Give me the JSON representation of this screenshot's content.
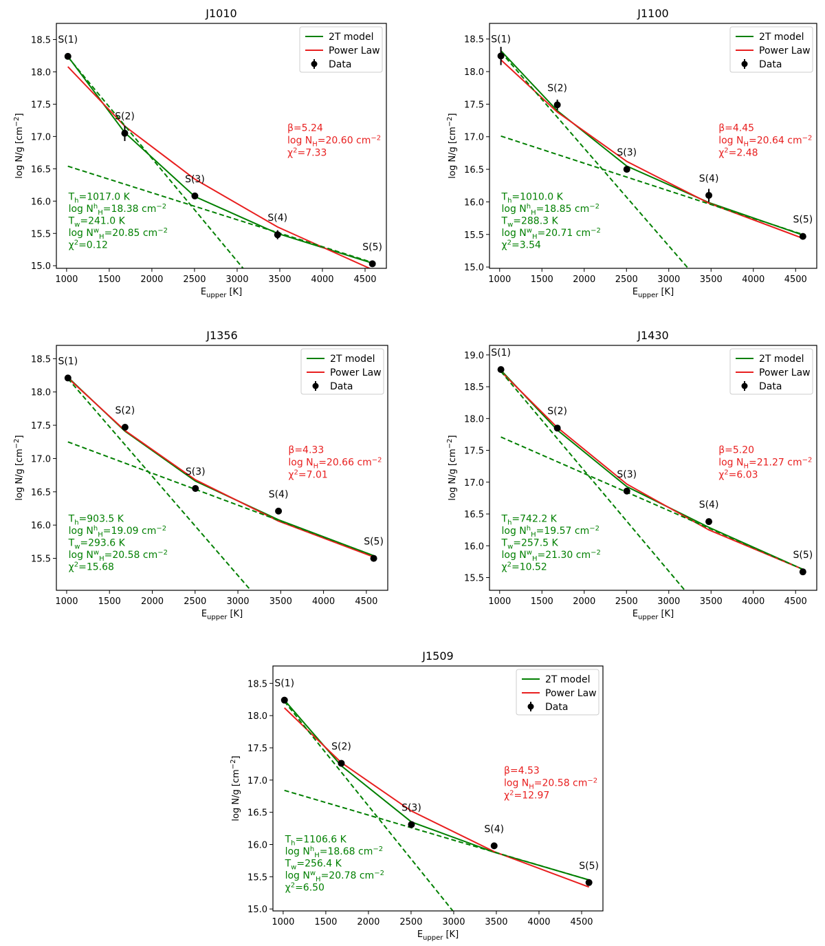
{
  "chart_data": [
    {
      "type": "line",
      "title": "J1010",
      "xlabel": "E_upper [K]",
      "ylabel": "log N/g [cm^-2]",
      "xlim": [
        880,
        4750
      ],
      "ylim": [
        14.96,
        18.75
      ],
      "xticks": [
        1000,
        1500,
        2000,
        2500,
        3000,
        3500,
        4000,
        4500
      ],
      "yticks": [
        15.0,
        15.5,
        16.0,
        16.5,
        17.0,
        17.5,
        18.0,
        18.5
      ],
      "legend": {
        "position": "top-right",
        "entries": [
          "2T model",
          "Power Law",
          "Data"
        ]
      },
      "data": {
        "x": [
          1015,
          1682,
          2504,
          3474,
          4586
        ],
        "y": [
          18.24,
          17.05,
          16.08,
          15.48,
          15.03
        ],
        "yerr": [
          0.04,
          0.12,
          0.04,
          0.07,
          0.02
        ],
        "labels": [
          "S(1)",
          "S(2)",
          "S(3)",
          "S(4)",
          "S(5)"
        ]
      },
      "series": [
        {
          "name": "2T model",
          "x": [
            1015,
            1682,
            2504,
            3474,
            4586
          ],
          "y": [
            18.24,
            17.06,
            16.07,
            15.5,
            15.04
          ]
        },
        {
          "name": "Power Law",
          "x": [
            1015,
            1682,
            2504,
            3474,
            4586
          ],
          "y": [
            18.08,
            17.16,
            16.34,
            15.6,
            14.94
          ]
        },
        {
          "name": "hot component",
          "x": [
            1015,
            3070
          ],
          "y": [
            18.23,
            14.96
          ]
        },
        {
          "name": "warm component",
          "x": [
            1015,
            4586
          ],
          "y": [
            16.54,
            15.05
          ]
        }
      ],
      "power_law_text": [
        "β=5.24",
        "log NH=20.60 cm⁻²",
        "χ²=7.33"
      ],
      "two_t_text": [
        "Th=1017.0 K",
        "log NHh=18.38 cm⁻²",
        "Tw=241.0 K",
        "log NHw=20.85 cm⁻²",
        "χ²=0.12"
      ]
    },
    {
      "type": "line",
      "title": "J1100",
      "xlabel": "E_upper [K]",
      "ylabel": "log N/g [cm^-2]",
      "xlim": [
        880,
        4750
      ],
      "ylim": [
        14.98,
        18.74
      ],
      "xticks": [
        1000,
        1500,
        2000,
        2500,
        3000,
        3500,
        4000,
        4500
      ],
      "yticks": [
        15.0,
        15.5,
        16.0,
        16.5,
        17.0,
        17.5,
        18.0,
        18.5
      ],
      "legend": {
        "position": "top-right",
        "entries": [
          "2T model",
          "Power Law",
          "Data"
        ]
      },
      "data": {
        "x": [
          1015,
          1682,
          2504,
          3474,
          4586
        ],
        "y": [
          18.24,
          17.49,
          16.5,
          16.1,
          15.47
        ],
        "yerr": [
          0.14,
          0.08,
          0.04,
          0.1,
          0.04
        ],
        "labels": [
          "S(1)",
          "S(2)",
          "S(3)",
          "S(4)",
          "S(5)"
        ]
      },
      "series": [
        {
          "name": "2T model",
          "x": [
            1015,
            1682,
            2504,
            3474,
            4586
          ],
          "y": [
            18.32,
            17.4,
            16.55,
            15.99,
            15.49
          ]
        },
        {
          "name": "Power Law",
          "x": [
            1015,
            1682,
            2504,
            3474,
            4586
          ],
          "y": [
            18.18,
            17.38,
            16.62,
            15.98,
            15.44
          ]
        },
        {
          "name": "hot component",
          "x": [
            1015,
            3230
          ],
          "y": [
            18.3,
            14.98
          ]
        },
        {
          "name": "warm component",
          "x": [
            1015,
            4586
          ],
          "y": [
            17.01,
            15.5
          ]
        }
      ],
      "power_law_text": [
        "β=4.45",
        "log NH=20.64 cm⁻²",
        "χ²=2.48"
      ],
      "two_t_text": [
        "Th=1010.0 K",
        "log NHh=18.85 cm⁻²",
        "Tw=288.3 K",
        "log NHw=20.71 cm⁻²",
        "χ²=3.54"
      ]
    },
    {
      "type": "line",
      "title": "J1356",
      "xlabel": "E_upper [K]",
      "ylabel": "log N/g [cm^-2]",
      "xlim": [
        880,
        4750
      ],
      "ylim": [
        15.02,
        18.7
      ],
      "xticks": [
        1000,
        1500,
        2000,
        2500,
        3000,
        3500,
        4000,
        4500
      ],
      "yticks": [
        15.5,
        16.0,
        16.5,
        17.0,
        17.5,
        18.0,
        18.5
      ],
      "legend": {
        "position": "top-right",
        "entries": [
          "2T model",
          "Power Law",
          "Data"
        ]
      },
      "data": {
        "x": [
          1015,
          1682,
          2504,
          3474,
          4586
        ],
        "y": [
          18.21,
          17.47,
          16.55,
          16.21,
          15.5
        ],
        "yerr": [
          0.02,
          0.03,
          0.02,
          0.02,
          0.02
        ],
        "labels": [
          "S(1)",
          "S(2)",
          "S(3)",
          "S(4)",
          "S(5)"
        ]
      },
      "series": [
        {
          "name": "2T model",
          "x": [
            1015,
            1682,
            2504,
            3474,
            4586
          ],
          "y": [
            18.22,
            17.41,
            16.66,
            16.08,
            15.54
          ]
        },
        {
          "name": "Power Law",
          "x": [
            1015,
            1682,
            2504,
            3474,
            4586
          ],
          "y": [
            18.21,
            17.42,
            16.68,
            16.06,
            15.52
          ]
        },
        {
          "name": "hot component",
          "x": [
            1015,
            3150
          ],
          "y": [
            18.2,
            15.02
          ]
        },
        {
          "name": "warm component",
          "x": [
            1015,
            4586
          ],
          "y": [
            17.25,
            15.54
          ]
        }
      ],
      "power_law_text": [
        "β=4.33",
        "log NH=20.66 cm⁻²",
        "χ²=7.01"
      ],
      "two_t_text": [
        "Th=903.5 K",
        "log NHh=19.09 cm⁻²",
        "Tw=293.6 K",
        "log NHw=20.58 cm⁻²",
        "χ²=15.68"
      ]
    },
    {
      "type": "line",
      "title": "J1430",
      "xlabel": "E_upper [K]",
      "ylabel": "log N/g [cm^-2]",
      "xlim": [
        880,
        4750
      ],
      "ylim": [
        15.3,
        19.15
      ],
      "xticks": [
        1000,
        1500,
        2000,
        2500,
        3000,
        3500,
        4000,
        4500
      ],
      "yticks": [
        15.5,
        16.0,
        16.5,
        17.0,
        17.5,
        18.0,
        18.5,
        19.0
      ],
      "legend": {
        "position": "top-right",
        "entries": [
          "2T model",
          "Power Law",
          "Data"
        ]
      },
      "data": {
        "x": [
          1015,
          1682,
          2504,
          3474,
          4586
        ],
        "y": [
          18.77,
          17.85,
          16.86,
          16.38,
          15.59
        ],
        "yerr": [
          0.02,
          0.03,
          0.02,
          0.02,
          0.02
        ],
        "labels": [
          "S(1)",
          "S(2)",
          "S(3)",
          "S(4)",
          "S(5)"
        ]
      },
      "series": [
        {
          "name": "2T model",
          "x": [
            1015,
            1682,
            2504,
            3474,
            4586
          ],
          "y": [
            18.76,
            17.82,
            16.93,
            16.29,
            15.63
          ]
        },
        {
          "name": "Power Law",
          "x": [
            1015,
            1682,
            2504,
            3474,
            4586
          ],
          "y": [
            18.74,
            17.86,
            16.97,
            16.25,
            15.63
          ]
        },
        {
          "name": "hot component",
          "x": [
            1015,
            3190
          ],
          "y": [
            18.74,
            15.3
          ]
        },
        {
          "name": "warm component",
          "x": [
            1015,
            4586
          ],
          "y": [
            17.71,
            15.63
          ]
        }
      ],
      "power_law_text": [
        "β=5.20",
        "log NH=21.27 cm⁻²",
        "χ²=6.03"
      ],
      "two_t_text": [
        "Th=742.2 K",
        "log NHh=19.57 cm⁻²",
        "Tw=257.5 K",
        "log NHw=21.30 cm⁻²",
        "χ²=10.52"
      ]
    },
    {
      "type": "line",
      "title": "J1509",
      "xlabel": "E_upper [K]",
      "ylabel": "log N/g [cm^-2]",
      "xlim": [
        880,
        4750
      ],
      "ylim": [
        14.97,
        18.77
      ],
      "xticks": [
        1000,
        1500,
        2000,
        2500,
        3000,
        3500,
        4000,
        4500
      ],
      "yticks": [
        15.0,
        15.5,
        16.0,
        16.5,
        17.0,
        17.5,
        18.0,
        18.5
      ],
      "legend": {
        "position": "top-right",
        "entries": [
          "2T model",
          "Power Law",
          "Data"
        ]
      },
      "data": {
        "x": [
          1015,
          1682,
          2504,
          3474,
          4586
        ],
        "y": [
          18.24,
          17.26,
          16.31,
          15.98,
          15.41
        ],
        "yerr": [
          0.02,
          0.02,
          0.02,
          0.02,
          0.02
        ],
        "labels": [
          "S(1)",
          "S(2)",
          "S(3)",
          "S(4)",
          "S(5)"
        ]
      },
      "series": [
        {
          "name": "2T model",
          "x": [
            1015,
            1682,
            2504,
            3474,
            4586
          ],
          "y": [
            18.24,
            17.22,
            16.35,
            15.88,
            15.45
          ]
        },
        {
          "name": "Power Law",
          "x": [
            1015,
            1682,
            2504,
            3474,
            4586
          ],
          "y": [
            18.12,
            17.27,
            16.52,
            15.89,
            15.34
          ]
        },
        {
          "name": "hot component",
          "x": [
            1015,
            2990
          ],
          "y": [
            18.22,
            14.97
          ]
        },
        {
          "name": "warm component",
          "x": [
            1015,
            4586
          ],
          "y": [
            16.84,
            15.45
          ]
        }
      ],
      "power_law_text": [
        "β=4.53",
        "log NH=20.58 cm⁻²",
        "χ²=12.97"
      ],
      "two_t_text": [
        "Th=1106.6 K",
        "log NHh=18.68 cm⁻²",
        "Tw=256.4 K",
        "log NHw=20.78 cm⁻²",
        "χ²=6.50"
      ]
    }
  ],
  "colors": {
    "two_t": "#007f00",
    "power_law": "#e81e1e",
    "data": "#000000"
  }
}
